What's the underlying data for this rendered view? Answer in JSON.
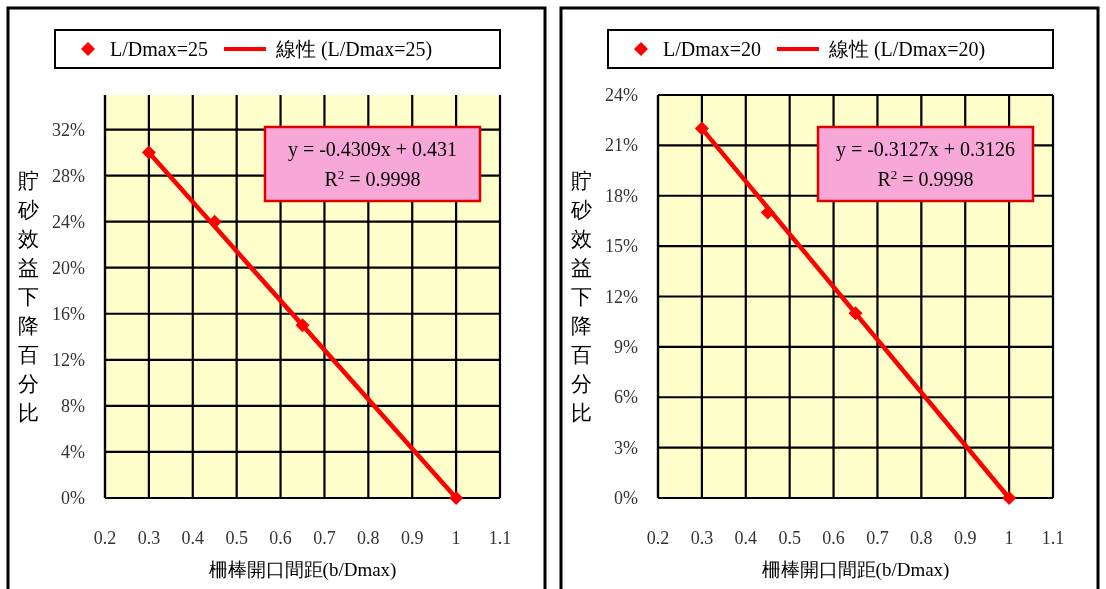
{
  "chart_data": [
    {
      "type": "scatter",
      "xlabel": "柵棒開口間距(b/Dmax)",
      "ylabel": "貯砂效益下降百分比",
      "xlim": [
        0.2,
        1.1
      ],
      "xticks": [
        0.2,
        0.3,
        0.4,
        0.5,
        0.6,
        0.7,
        0.8,
        0.9,
        1,
        1.1
      ],
      "ylim": [
        0,
        35
      ],
      "yticks": [
        {
          "value": 0,
          "label": "0%"
        },
        {
          "value": 4,
          "label": "4%"
        },
        {
          "value": 8,
          "label": "8%"
        },
        {
          "value": 12,
          "label": "12%"
        },
        {
          "value": 16,
          "label": "16%"
        },
        {
          "value": 20,
          "label": "20%"
        },
        {
          "value": 24,
          "label": "24%"
        },
        {
          "value": 28,
          "label": "28%"
        },
        {
          "value": 32,
          "label": "32%"
        }
      ],
      "grid": true,
      "legend": "top",
      "series": [
        {
          "name": "L/Dmax=25",
          "color": "#ff0000",
          "marker": "diamond",
          "x": [
            0.3,
            0.45,
            0.65,
            1
          ],
          "values": [
            30,
            24,
            15,
            0
          ]
        },
        {
          "name": "線性 (L/Dmax=25)",
          "type": "line",
          "color": "#ff0000",
          "x": [
            0.3,
            1
          ],
          "values": [
            30,
            0
          ]
        }
      ],
      "annotations": [
        "y = -0.4309x + 0.431\nR$^{2}$ = 0.9998"
      ]
    },
    {
      "type": "scatter",
      "xlabel": "柵棒開口間距(b/Dmax)",
      "ylabel": "貯砂效益下降百分比",
      "xlim": [
        0.2,
        1.1
      ],
      "xticks": [
        0.2,
        0.3,
        0.4,
        0.5,
        0.6,
        0.7,
        0.8,
        0.9,
        1,
        1.1
      ],
      "ylim": [
        0,
        24
      ],
      "yticks": [
        {
          "value": 0,
          "label": "0%"
        },
        {
          "value": 3,
          "label": "3%"
        },
        {
          "value": 6,
          "label": "6%"
        },
        {
          "value": 9,
          "label": "9%"
        },
        {
          "value": 12,
          "label": "12%"
        },
        {
          "value": 15,
          "label": "15%"
        },
        {
          "value": 18,
          "label": "18%"
        },
        {
          "value": 21,
          "label": "21%"
        },
        {
          "value": 24,
          "label": "24%"
        }
      ],
      "grid": true,
      "legend": "top",
      "series": [
        {
          "name": "L/Dmax=20",
          "color": "#ff0000",
          "marker": "diamond",
          "x": [
            0.3,
            0.45,
            0.65,
            1
          ],
          "values": [
            22,
            17,
            11,
            0
          ]
        },
        {
          "name": "線性 (L/Dmax=20)",
          "type": "line",
          "color": "#ff0000",
          "x": [
            0.3,
            1
          ],
          "values": [
            22,
            0
          ]
        }
      ],
      "annotations": [
        "y = -0.3127x + 0.3126\nR$^{2}$ = 0.9998"
      ]
    }
  ]
}
